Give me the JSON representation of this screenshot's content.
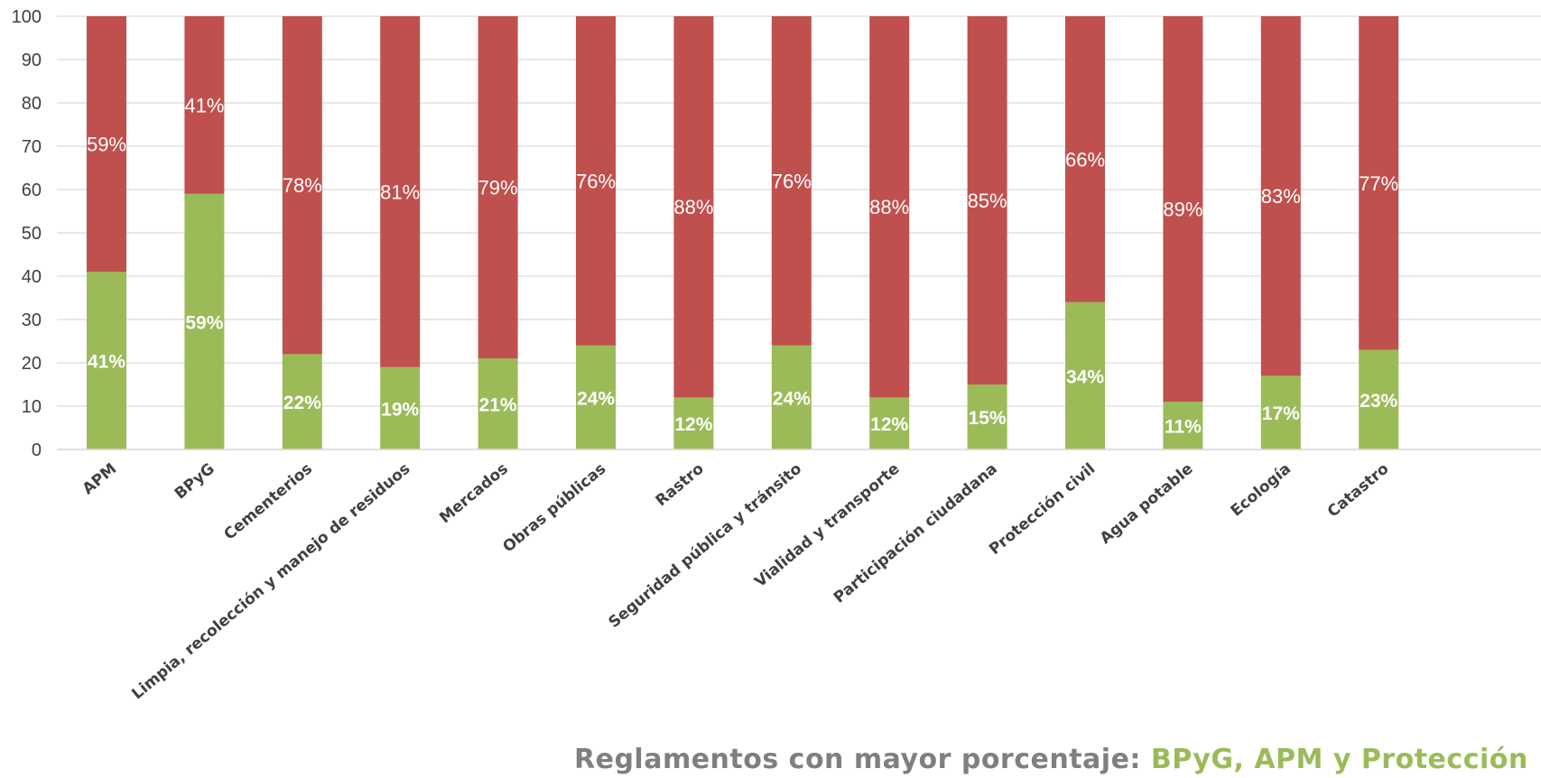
{
  "chart_data": {
    "type": "bar",
    "stacked": true,
    "categories": [
      "APM",
      "BPyG",
      "Cementerios",
      "Limpia, recolección y manejo de residuos",
      "Mercados",
      "Obras públicas",
      "Rastro",
      "Seguridad pública y tránsito",
      "Vialidad y transporte",
      "Participación ciudadana",
      "Protección civil",
      "Agua potable",
      "Ecología",
      "Catastro"
    ],
    "series": [
      {
        "values": [
          41,
          59,
          22,
          19,
          21,
          24,
          12,
          24,
          12,
          15,
          34,
          11,
          17,
          23
        ],
        "color": "#9bbb59"
      },
      {
        "values": [
          59,
          41,
          78,
          81,
          79,
          76,
          88,
          76,
          88,
          85,
          66,
          89,
          83,
          77
        ],
        "color": "#c0504d"
      }
    ],
    "data_labels": {
      "bottom": [
        "41%",
        "59%",
        "22%",
        "19%",
        "21%",
        "24%",
        "12%",
        "24%",
        "12%",
        "15%",
        "34%",
        "11%",
        "17%",
        "23%"
      ],
      "top": [
        "59%",
        "41%",
        "78%",
        "81%",
        "79%",
        "76%",
        "88%",
        "76%",
        "88%",
        "85%",
        "66%",
        "89%",
        "83%",
        "77%"
      ]
    },
    "ylim": [
      0,
      100
    ],
    "yticks": [
      "0",
      "10",
      "20",
      "30",
      "40",
      "50",
      "60",
      "70",
      "80",
      "90",
      "100"
    ],
    "grid": true,
    "legend": "none"
  },
  "footer": {
    "lead": "Reglamentos con mayor porcentaje:",
    "highlight": "BPyG, APM y Protección"
  },
  "colors": {
    "grid": "#d9d9d9",
    "axis_text": "#404040",
    "footer_lead": "#7f7f7f",
    "footer_highlight": "#9bbb59"
  }
}
